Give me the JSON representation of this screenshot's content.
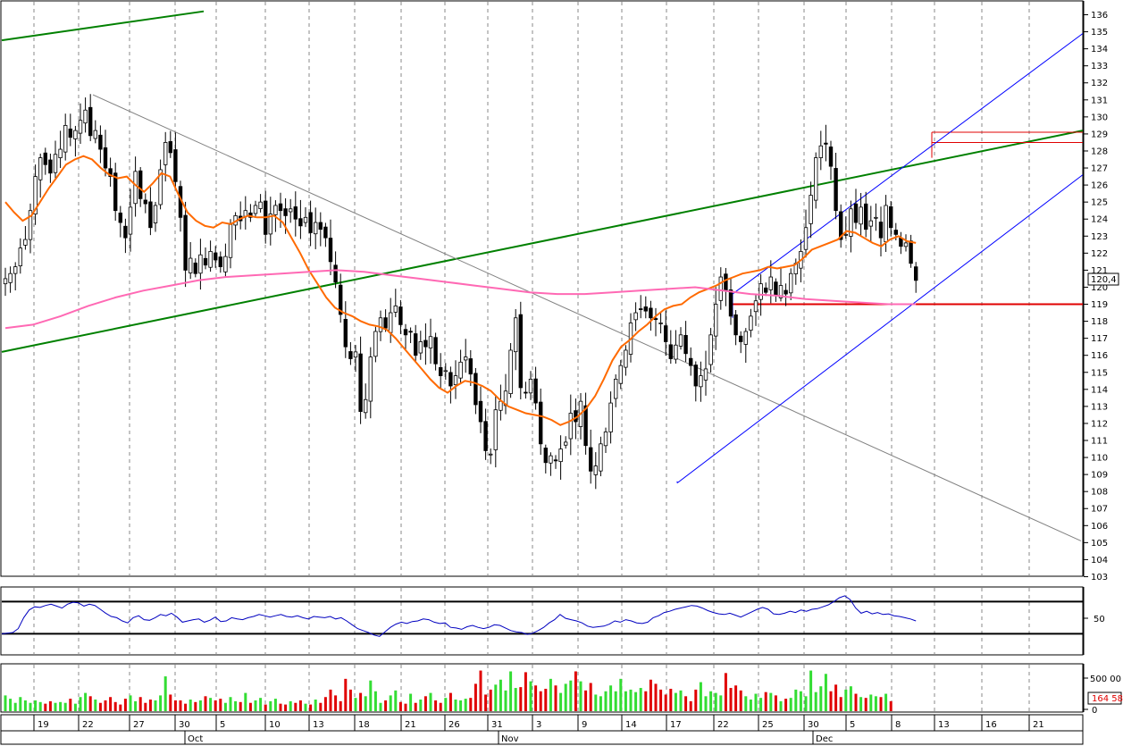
{
  "chart_data": [
    {
      "type": "candlestick",
      "panel": "price",
      "ylim": [
        103,
        136
      ],
      "y_ticks": [
        103,
        104,
        105,
        106,
        107,
        108,
        109,
        110,
        111,
        112,
        113,
        114,
        115,
        116,
        117,
        118,
        119,
        120,
        121,
        122,
        123,
        124,
        125,
        126,
        127,
        128,
        129,
        130,
        131,
        132,
        133,
        134,
        135,
        136
      ],
      "last_value_label": "120,4",
      "x_tick_labels": [
        "19",
        "22",
        "27",
        "30",
        "5",
        "10",
        "13",
        "18",
        "21",
        "26",
        "31",
        "3",
        "9",
        "14",
        "17",
        "22",
        "25",
        "30",
        "5",
        "8",
        "13",
        "16",
        "21"
      ],
      "month_labels": [
        "Oct",
        "Nov",
        "Dec"
      ],
      "close_series": [
        120.5,
        120.8,
        121.2,
        122.3,
        122.8,
        124.5,
        126.5,
        127.6,
        127.2,
        126.7,
        127.8,
        128.1,
        129.5,
        128.8,
        129.2,
        129.8,
        130.4,
        128.9,
        129.2,
        128.1,
        127.0,
        126.5,
        124.5,
        123.8,
        122.9,
        124.7,
        126.8,
        125.2,
        124.9,
        123.5,
        124.8,
        126.9,
        128.5,
        127.9,
        126.2,
        124.1,
        121.0,
        121.7,
        120.8,
        121.9,
        121.3,
        122.1,
        121.6,
        121.2,
        121.8,
        123.7,
        124.2,
        123.9,
        124.5,
        124.1,
        124.8,
        125.0,
        123.1,
        124.3,
        124.8,
        124.5,
        124.2,
        124.6,
        124.0,
        123.6,
        124.1,
        123.2,
        123.8,
        123.4,
        122.9,
        121.5,
        120.3,
        118.4,
        116.5,
        115.8,
        116.2,
        112.7,
        113.4,
        115.9,
        117.4,
        118.2,
        117.6,
        118.5,
        118.9,
        117.8,
        117.2,
        117.4,
        116.0,
        116.8,
        116.5,
        117.1,
        115.5,
        114.8,
        115.1,
        114.2,
        114.8,
        115.6,
        115.9,
        114.9,
        113.1,
        112.1,
        110.4,
        110.2,
        112.8,
        113.3,
        113.9,
        116.3,
        118.2,
        114.1,
        113.8,
        114.6,
        113.2,
        110.8,
        109.7,
        110.1,
        109.8,
        110.5,
        110.9,
        112.6,
        112.1,
        113.3,
        110.7,
        109.2,
        109.5,
        110.8,
        111.5,
        113.2,
        114.6,
        115.4,
        116.3,
        117.9,
        118.5,
        118.7,
        118.6,
        118.2,
        118.1,
        117.9,
        116.8,
        115.8,
        116.6,
        117.2,
        116.1,
        115.4,
        114.2,
        114.8,
        115.2,
        117.2,
        119.0,
        120.6,
        119.8,
        118.3,
        117.2,
        116.8,
        117.4,
        118.3,
        119.2,
        120.2,
        119.7,
        120.6,
        119.5,
        120.1,
        119.6,
        120.8,
        121.4,
        122.1,
        123.5,
        125.4,
        127.6,
        128.3,
        128.4,
        127.1,
        124.5,
        122.8,
        123.1,
        124.6,
        123.8,
        124.7,
        123.4,
        123.9,
        124.1,
        122.9,
        124.8,
        123.5,
        123.1,
        122.4,
        122.6,
        121.4,
        120.4
      ],
      "series": [
        {
          "name": "",
          "color": "#ff6a00",
          "values": [
            125.0,
            124.4,
            123.9,
            124.2,
            125.0,
            125.8,
            126.5,
            127.2,
            127.5,
            127.7,
            127.5,
            127.0,
            126.6,
            126.4,
            126.5,
            126.0,
            125.6,
            126.1,
            126.7,
            126.5,
            125.4,
            124.4,
            123.9,
            123.6,
            123.5,
            123.8,
            123.7,
            124.0,
            124.2,
            124.1,
            124.1,
            124.2,
            123.8,
            122.9,
            122.0,
            121.0,
            120.2,
            119.4,
            118.8,
            118.5,
            118.3,
            118.0,
            117.8,
            117.7,
            117.5,
            117.0,
            116.4,
            115.8,
            115.2,
            114.6,
            114.1,
            113.8,
            114.2,
            114.5,
            114.4,
            114.2,
            113.9,
            113.4,
            113.0,
            112.8,
            112.6,
            112.5,
            112.4,
            112.2,
            111.9,
            112.1,
            112.4,
            112.9,
            113.6,
            114.6,
            115.7,
            116.5,
            116.9,
            117.4,
            117.8,
            118.3,
            118.7,
            118.9,
            119.0,
            119.4,
            119.7,
            119.9,
            120.1,
            120.4,
            120.6,
            120.8,
            120.9,
            121.0,
            121.2,
            121.1,
            121.2,
            121.3,
            121.7,
            122.2,
            122.4,
            122.6,
            122.8,
            123.3,
            123.2,
            122.9,
            122.6,
            122.4,
            122.8,
            123.0,
            122.7,
            122.6
          ]
        },
        {
          "name": "",
          "color": "#ff69b4",
          "values": [
            117.6,
            117.8,
            118.3,
            118.9,
            119.4,
            119.8,
            120.1,
            120.4,
            120.6,
            120.7,
            120.8,
            120.9,
            121.0,
            120.9,
            120.7,
            120.5,
            120.3,
            120.1,
            119.9,
            119.7,
            119.6,
            119.6,
            119.7,
            119.8,
            119.9,
            120.0,
            119.8,
            119.6,
            119.5,
            119.3,
            119.2,
            119.1,
            119.0,
            119.0
          ]
        },
        {
          "name": "",
          "color": "#008000",
          "kind": "trend",
          "values": [
            116.2,
            129.2
          ]
        },
        {
          "name": "",
          "color": "#008000",
          "kind": "trend",
          "values": [
            134.5,
            136.2
          ]
        },
        {
          "name": "",
          "color": "#808080",
          "kind": "trend",
          "values": [
            131.3,
            105.1
          ]
        },
        {
          "name": "",
          "color": "#e00000",
          "kind": "horizontal",
          "values": [
            119.0
          ]
        },
        {
          "name": "",
          "color": "#e00000",
          "kind": "horizontal",
          "values": [
            129.1,
            128.5
          ]
        },
        {
          "name": "",
          "color": "#0000ff",
          "kind": "channel",
          "values": [
            108.5,
            134.9
          ]
        }
      ]
    },
    {
      "type": "line",
      "panel": "oscillator",
      "y_tick_labels": [
        "50"
      ],
      "levels": [
        80,
        30
      ],
      "series": [
        {
          "name": "",
          "color": "#0000c0",
          "values": [
            30,
            31,
            32,
            38,
            55,
            67,
            72,
            71,
            74,
            76,
            73,
            70,
            76,
            79,
            78,
            73,
            76,
            74,
            68,
            62,
            57,
            55,
            50,
            47,
            55,
            58,
            52,
            51,
            55,
            60,
            58,
            62,
            56,
            48,
            50,
            52,
            53,
            48,
            51,
            56,
            49,
            50,
            55,
            53,
            52,
            55,
            57,
            60,
            58,
            56,
            58,
            60,
            57,
            56,
            58,
            55,
            53,
            57,
            56,
            55,
            57,
            53,
            55,
            50,
            44,
            38,
            35,
            32,
            28,
            26,
            33,
            40,
            45,
            48,
            46,
            49,
            50,
            53,
            52,
            48,
            46,
            47,
            40,
            39,
            37,
            41,
            43,
            40,
            38,
            40,
            44,
            43,
            39,
            35,
            33,
            32,
            29,
            31,
            35,
            40,
            47,
            52,
            60,
            54,
            52,
            50,
            47,
            42,
            40,
            41,
            42,
            45,
            50,
            48,
            52,
            50,
            47,
            46,
            48,
            55,
            58,
            63,
            65,
            68,
            70,
            72,
            74,
            73,
            70,
            66,
            63,
            61,
            60,
            62,
            59,
            56,
            60,
            64,
            68,
            71,
            68,
            61,
            60,
            62,
            65,
            63,
            67,
            65,
            68,
            69,
            72,
            75,
            80,
            86,
            89,
            83,
            70,
            62,
            65,
            61,
            63,
            60,
            61,
            58,
            57,
            55,
            53,
            50
          ]
        }
      ]
    },
    {
      "type": "bar",
      "panel": "volume",
      "y_tick_labels": [
        "500 00",
        "0"
      ],
      "last_value_label": "164 58",
      "values": [
        1.9,
        1.5,
        1.0,
        1.7,
        1.3,
        1.0,
        1.3,
        1.1,
        0.9,
        1.2,
        1.0,
        1.1,
        1.0,
        1.5,
        0.9,
        1.7,
        2.2,
        1.8,
        1.4,
        1.0,
        1.3,
        1.7,
        1.1,
        0.8,
        1.5,
        1.9,
        1.2,
        1.7,
        1.0,
        1.4,
        1.3,
        1.9,
        4.2,
        2.0,
        1.3,
        1.3,
        0.9,
        1.4,
        1.1,
        1.3,
        1.8,
        1.6,
        1.3,
        1.5,
        1.0,
        1.7,
        1.2,
        1.1,
        2.2,
        1.0,
        1.3,
        1.6,
        0.8,
        1.2,
        1.5,
        0.9,
        0.8,
        1.2,
        1.0,
        1.3,
        0.9,
        0.8,
        1.4,
        1.0,
        1.7,
        2.6,
        1.9,
        1.2,
        3.9,
        2.6,
        1.6,
        2.2,
        1.8,
        3.7,
        2.4,
        1.0,
        1.3,
        1.9,
        2.5,
        1.1,
        0.9,
        2.1,
        1.0,
        1.4,
        1.8,
        2.2,
        1.3,
        1.0,
        1.6,
        2.2,
        1.4,
        1.3,
        1.5,
        1.6,
        3.3,
        4.9,
        2.0,
        2.6,
        3.2,
        3.8,
        2.5,
        4.8,
        2.8,
        2.9,
        4.7,
        3.6,
        3.1,
        2.4,
        2.7,
        3.9,
        3.1,
        2.2,
        3.3,
        3.7,
        4.8,
        3.6,
        2.5,
        3.4,
        2.0,
        1.8,
        2.4,
        3.1,
        2.4,
        3.9,
        2.4,
        2.6,
        2.3,
        2.8,
        2.4,
        3.8,
        3.3,
        2.6,
        2.0,
        2.7,
        2.2,
        2.5,
        1.8,
        1.2,
        2.6,
        3.5,
        1.8,
        2.4,
        2.2,
        1.9,
        4.6,
        2.8,
        3.1,
        2.5,
        1.8,
        1.4,
        2.1,
        1.6,
        2.3,
        2.2,
        1.9,
        1.2,
        1.5,
        1.6,
        2.6,
        2.4,
        1.8,
        4.9,
        2.3,
        3.0,
        4.5,
        2.4,
        3.2,
        1.7,
        2.6,
        3.0,
        2.1,
        1.7,
        1.6,
        2.0,
        1.8,
        1.7,
        2.1,
        1.2
      ],
      "ylim": [
        0,
        5.5
      ]
    }
  ]
}
